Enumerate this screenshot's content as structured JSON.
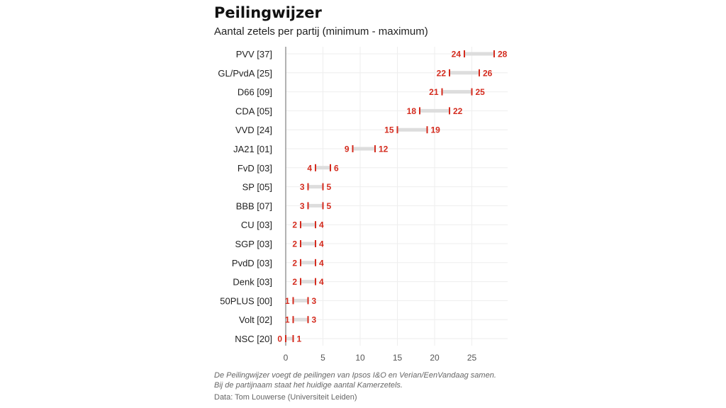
{
  "title": "Peilingwijzer",
  "subtitle": "Aantal zetels per partij (minimum - maximum)",
  "footnote": {
    "line1": "De Peilingwijzer voegt de peilingen van Ipsos I&O en Verian/EenVandaag samen.",
    "line2": "Bij de partijnaam staat het huidige aantal Kamerzetels.",
    "source": "Data: Tom Louwerse (Universiteit Leiden)"
  },
  "colors": {
    "accent": "#d42b1e",
    "range_bar": "#dddddd",
    "grid": "#eeeeee",
    "axis": "#999999"
  },
  "chart_data": {
    "type": "range",
    "xlim": [
      0,
      30
    ],
    "xticks": [
      0,
      5,
      10,
      15,
      20,
      25
    ],
    "grid": true,
    "categories": [
      {
        "label": "PVV [37]",
        "min": 24,
        "max": 28
      },
      {
        "label": "GL/PvdA [25]",
        "min": 22,
        "max": 26
      },
      {
        "label": "D66 [09]",
        "min": 21,
        "max": 25
      },
      {
        "label": "CDA [05]",
        "min": 18,
        "max": 22
      },
      {
        "label": "VVD [24]",
        "min": 15,
        "max": 19
      },
      {
        "label": "JA21 [01]",
        "min": 9,
        "max": 12
      },
      {
        "label": "FvD [03]",
        "min": 4,
        "max": 6
      },
      {
        "label": "SP [05]",
        "min": 3,
        "max": 5
      },
      {
        "label": "BBB [07]",
        "min": 3,
        "max": 5
      },
      {
        "label": "CU [03]",
        "min": 2,
        "max": 4
      },
      {
        "label": "SGP [03]",
        "min": 2,
        "max": 4
      },
      {
        "label": "PvdD [03]",
        "min": 2,
        "max": 4
      },
      {
        "label": "Denk [03]",
        "min": 2,
        "max": 4
      },
      {
        "label": "50PLUS [00]",
        "min": 1,
        "max": 3
      },
      {
        "label": "Volt [02]",
        "min": 1,
        "max": 3
      },
      {
        "label": "NSC [20]",
        "min": 0,
        "max": 1
      }
    ]
  }
}
